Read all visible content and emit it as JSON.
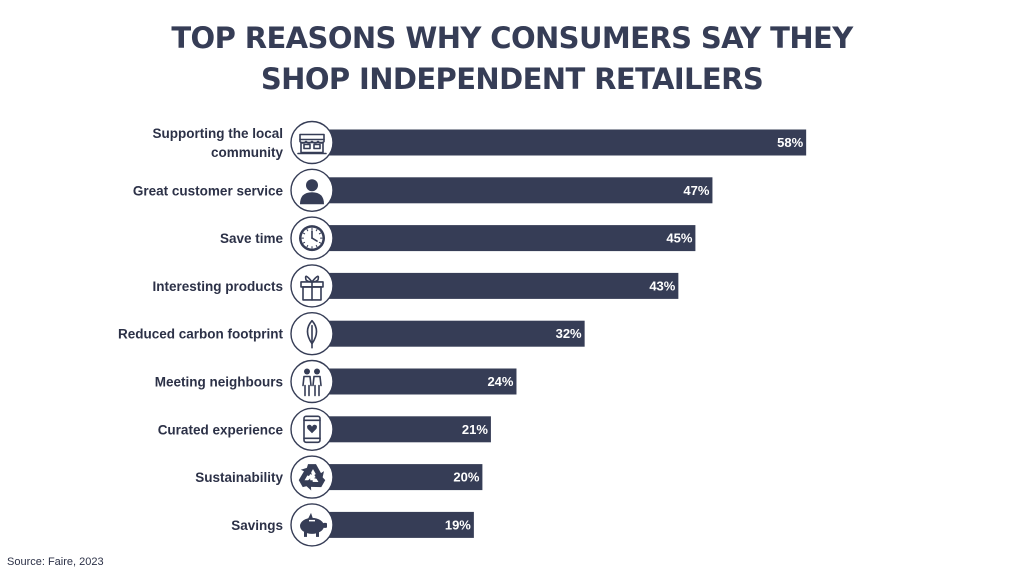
{
  "chart_data": {
    "type": "bar",
    "orientation": "horizontal",
    "title": "TOP REASONS WHY CONSUMERS SAY THEY SHOP INDEPENDENT RETAILERS",
    "title_lines": [
      "TOP REASONS WHY CONSUMERS SAY THEY",
      "SHOP INDEPENDENT RETAILERS"
    ],
    "categories": [
      [
        "Supporting the local",
        "community"
      ],
      [
        "Great customer service"
      ],
      [
        "Save time"
      ],
      [
        "Interesting products"
      ],
      [
        "Reduced carbon footprint"
      ],
      [
        "Meeting neighbours"
      ],
      [
        "Curated experience"
      ],
      [
        "Sustainability"
      ],
      [
        "Savings"
      ]
    ],
    "icons": [
      "storefront-icon",
      "person-icon",
      "clock-icon",
      "gift-icon",
      "leaf-icon",
      "couple-icon",
      "smartphone-heart-icon",
      "recycle-icon",
      "piggy-bank-icon"
    ],
    "values": [
      58,
      47,
      45,
      43,
      32,
      24,
      21,
      20,
      19
    ],
    "value_labels": [
      "58%",
      "47%",
      "45%",
      "43%",
      "32%",
      "24%",
      "21%",
      "20%",
      "19%"
    ],
    "unit": "%",
    "xlim": [
      0,
      60
    ],
    "grid": false,
    "legend": "none",
    "colors": {
      "bar": "#363d56",
      "title": "#363d56",
      "text": "#2c3147",
      "value_text": "#ffffff",
      "icon_stroke": "#363d56"
    }
  },
  "source": "Source: Faire, 2023"
}
